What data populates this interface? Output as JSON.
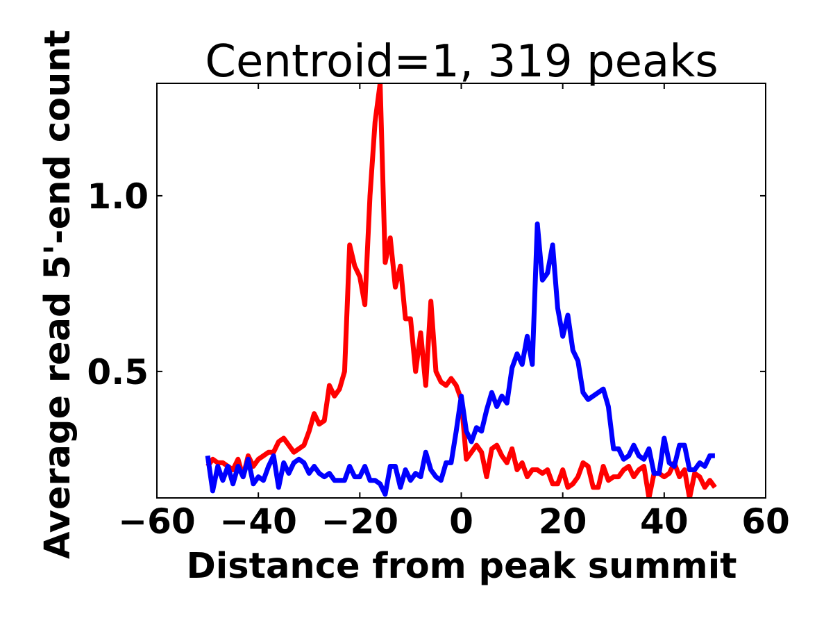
{
  "chart_data": {
    "type": "line",
    "title": "Centroid=1, 319 peaks",
    "xlabel": "Distance from peak summit",
    "ylabel": "Average read 5'-end count",
    "xlim": [
      -60,
      60
    ],
    "ylim": [
      0.14,
      1.32
    ],
    "xticks": [
      -60,
      -40,
      -20,
      0,
      20,
      40,
      60
    ],
    "xtick_labels": [
      "−60",
      "−40",
      "−20",
      "0",
      "20",
      "40",
      "60"
    ],
    "yticks": [
      0.5,
      1.0
    ],
    "ytick_labels": [
      "0.5",
      "1.0"
    ],
    "grid": false,
    "x": [
      -50,
      -49,
      -48,
      -47,
      -46,
      -45,
      -44,
      -43,
      -42,
      -41,
      -40,
      -39,
      -38,
      -37,
      -36,
      -35,
      -34,
      -33,
      -32,
      -31,
      -30,
      -29,
      -28,
      -27,
      -26,
      -25,
      -24,
      -23,
      -22,
      -21,
      -20,
      -19,
      -18,
      -17,
      -16,
      -15,
      -14,
      -13,
      -12,
      -11,
      -10,
      -9,
      -8,
      -7,
      -6,
      -5,
      -4,
      -3,
      -2,
      -1,
      0,
      1,
      2,
      3,
      4,
      5,
      6,
      7,
      8,
      9,
      10,
      11,
      12,
      13,
      14,
      15,
      16,
      17,
      18,
      19,
      20,
      21,
      22,
      23,
      24,
      25,
      26,
      27,
      28,
      29,
      30,
      31,
      32,
      33,
      34,
      35,
      36,
      37,
      38,
      39,
      40,
      41,
      42,
      43,
      44,
      45,
      46,
      47,
      48,
      49,
      50
    ],
    "series": [
      {
        "color": "#ff0000",
        "values": [
          0.23,
          0.25,
          0.24,
          0.24,
          0.23,
          0.22,
          0.25,
          0.2,
          0.26,
          0.23,
          0.25,
          0.26,
          0.27,
          0.27,
          0.3,
          0.31,
          0.29,
          0.27,
          0.28,
          0.29,
          0.33,
          0.38,
          0.35,
          0.36,
          0.46,
          0.43,
          0.45,
          0.5,
          0.86,
          0.8,
          0.77,
          0.69,
          1.0,
          1.21,
          1.32,
          0.81,
          0.88,
          0.74,
          0.8,
          0.65,
          0.65,
          0.5,
          0.61,
          0.46,
          0.7,
          0.5,
          0.47,
          0.46,
          0.48,
          0.46,
          0.42,
          0.25,
          0.27,
          0.29,
          0.27,
          0.2,
          0.28,
          0.29,
          0.26,
          0.24,
          0.28,
          0.22,
          0.24,
          0.2,
          0.22,
          0.22,
          0.21,
          0.22,
          0.18,
          0.18,
          0.22,
          0.17,
          0.18,
          0.2,
          0.24,
          0.23,
          0.17,
          0.17,
          0.23,
          0.19,
          0.2,
          0.2,
          0.22,
          0.23,
          0.2,
          0.22,
          0.23,
          0.14,
          0.21,
          0.21,
          0.2,
          0.21,
          0.24,
          0.2,
          0.22,
          0.14,
          0.21,
          0.2,
          0.17,
          0.19,
          0.17
        ]
      },
      {
        "color": "#0000ff",
        "values": [
          0.26,
          0.16,
          0.23,
          0.19,
          0.23,
          0.18,
          0.23,
          0.2,
          0.25,
          0.18,
          0.2,
          0.19,
          0.23,
          0.26,
          0.17,
          0.24,
          0.21,
          0.24,
          0.25,
          0.24,
          0.21,
          0.23,
          0.21,
          0.2,
          0.21,
          0.19,
          0.19,
          0.19,
          0.23,
          0.2,
          0.2,
          0.23,
          0.19,
          0.19,
          0.18,
          0.15,
          0.23,
          0.23,
          0.17,
          0.22,
          0.19,
          0.21,
          0.2,
          0.27,
          0.22,
          0.2,
          0.19,
          0.24,
          0.24,
          0.33,
          0.43,
          0.33,
          0.3,
          0.34,
          0.33,
          0.39,
          0.44,
          0.4,
          0.43,
          0.41,
          0.51,
          0.55,
          0.52,
          0.6,
          0.52,
          0.92,
          0.76,
          0.78,
          0.86,
          0.68,
          0.6,
          0.66,
          0.56,
          0.53,
          0.44,
          0.42,
          0.43,
          0.44,
          0.45,
          0.4,
          0.28,
          0.28,
          0.25,
          0.26,
          0.29,
          0.26,
          0.25,
          0.28,
          0.21,
          0.21,
          0.31,
          0.24,
          0.23,
          0.29,
          0.29,
          0.22,
          0.22,
          0.24,
          0.23,
          0.26,
          0.26
        ]
      }
    ]
  }
}
